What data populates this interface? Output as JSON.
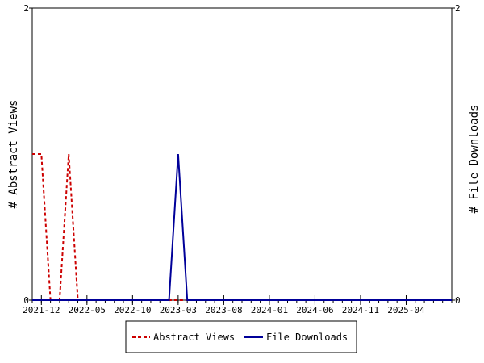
{
  "chart_data": {
    "type": "line",
    "title": "",
    "ylabel": "# Abstract Views",
    "y2label": "# File Downloads",
    "ylim": [
      0,
      2
    ],
    "y2lim": [
      0,
      2
    ],
    "y_ticks": [
      "0",
      "2"
    ],
    "y2_ticks": [
      "0",
      "2"
    ],
    "x_range": [
      "2021-11",
      "2025-09"
    ],
    "x_tick_labels": [
      "2021-12",
      "2022-05",
      "2022-10",
      "2023-03",
      "2023-08",
      "2024-01",
      "2024-06",
      "2024-11",
      "2025-04"
    ],
    "grid": false,
    "legend_position": "bottom-center",
    "series": [
      {
        "name": "Abstract Views",
        "color": "#cc0000",
        "style": "dashed",
        "axis": "left",
        "points": [
          [
            "2021-11",
            1
          ],
          [
            "2021-12",
            1
          ],
          [
            "2022-01",
            0
          ],
          [
            "2022-02",
            0
          ],
          [
            "2022-03",
            1
          ],
          [
            "2022-04",
            0
          ],
          [
            "2022-05",
            0
          ],
          [
            "2022-06",
            0
          ],
          [
            "2022-07",
            0
          ],
          [
            "2022-08",
            0
          ],
          [
            "2022-09",
            0
          ],
          [
            "2022-10",
            0
          ],
          [
            "2022-11",
            0
          ],
          [
            "2022-12",
            0
          ],
          [
            "2023-01",
            0
          ],
          [
            "2023-02",
            0
          ],
          [
            "2023-03",
            0
          ],
          [
            "2023-04",
            0
          ],
          [
            "2023-05",
            0
          ],
          [
            "2023-06",
            0
          ],
          [
            "2023-07",
            0
          ],
          [
            "2023-08",
            0
          ],
          [
            "2023-09",
            0
          ],
          [
            "2023-10",
            0
          ],
          [
            "2023-11",
            0
          ],
          [
            "2023-12",
            0
          ],
          [
            "2024-01",
            0
          ],
          [
            "2024-02",
            0
          ],
          [
            "2024-03",
            0
          ],
          [
            "2024-04",
            0
          ],
          [
            "2024-05",
            0
          ],
          [
            "2024-06",
            0
          ],
          [
            "2024-07",
            0
          ],
          [
            "2024-08",
            0
          ],
          [
            "2024-09",
            0
          ],
          [
            "2024-10",
            0
          ],
          [
            "2024-11",
            0
          ],
          [
            "2024-12",
            0
          ],
          [
            "2025-01",
            0
          ],
          [
            "2025-02",
            0
          ],
          [
            "2025-03",
            0
          ],
          [
            "2025-04",
            0
          ],
          [
            "2025-05",
            0
          ],
          [
            "2025-06",
            0
          ],
          [
            "2025-07",
            0
          ],
          [
            "2025-08",
            0
          ],
          [
            "2025-09",
            0
          ]
        ]
      },
      {
        "name": "File Downloads",
        "color": "#000099",
        "style": "solid",
        "axis": "right",
        "points": [
          [
            "2021-11",
            0
          ],
          [
            "2021-12",
            0
          ],
          [
            "2022-01",
            0
          ],
          [
            "2022-02",
            0
          ],
          [
            "2022-03",
            0
          ],
          [
            "2022-04",
            0
          ],
          [
            "2022-05",
            0
          ],
          [
            "2022-06",
            0
          ],
          [
            "2022-07",
            0
          ],
          [
            "2022-08",
            0
          ],
          [
            "2022-09",
            0
          ],
          [
            "2022-10",
            0
          ],
          [
            "2022-11",
            0
          ],
          [
            "2022-12",
            0
          ],
          [
            "2023-01",
            0
          ],
          [
            "2023-02",
            0
          ],
          [
            "2023-03",
            1
          ],
          [
            "2023-04",
            0
          ],
          [
            "2023-05",
            0
          ],
          [
            "2023-06",
            0
          ],
          [
            "2023-07",
            0
          ],
          [
            "2023-08",
            0
          ],
          [
            "2023-09",
            0
          ],
          [
            "2023-10",
            0
          ],
          [
            "2023-11",
            0
          ],
          [
            "2023-12",
            0
          ],
          [
            "2024-01",
            0
          ],
          [
            "2024-02",
            0
          ],
          [
            "2024-03",
            0
          ],
          [
            "2024-04",
            0
          ],
          [
            "2024-05",
            0
          ],
          [
            "2024-06",
            0
          ],
          [
            "2024-07",
            0
          ],
          [
            "2024-08",
            0
          ],
          [
            "2024-09",
            0
          ],
          [
            "2024-10",
            0
          ],
          [
            "2024-11",
            0
          ],
          [
            "2024-12",
            0
          ],
          [
            "2025-01",
            0
          ],
          [
            "2025-02",
            0
          ],
          [
            "2025-03",
            0
          ],
          [
            "2025-04",
            0
          ],
          [
            "2025-05",
            0
          ],
          [
            "2025-06",
            0
          ],
          [
            "2025-07",
            0
          ],
          [
            "2025-08",
            0
          ],
          [
            "2025-09",
            0
          ]
        ]
      }
    ]
  }
}
